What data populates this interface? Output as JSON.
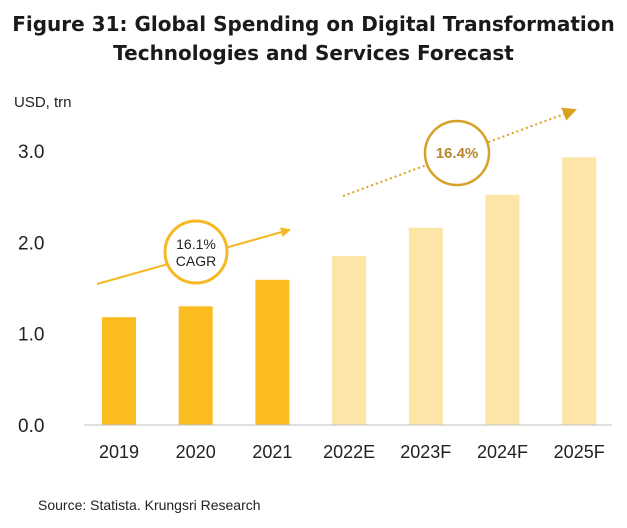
{
  "title": {
    "line1": "Figure 31: Global Spending on Digital Transformation",
    "line2": "Technologies and Services Forecast"
  },
  "unit_label": "USD, trn",
  "source": "Source: Statista. Krungsri Research",
  "colors": {
    "actual": "#fbbc20",
    "forecast": "#fde5a7",
    "trend_actual": "#f6b823",
    "trend_forecast": "#d9a21e",
    "circle_actual": "#f6b823",
    "circle_forecast": "#d6a12a",
    "forecast_label": "#b8862d"
  },
  "annotations": {
    "cagr_actual_line1": "16.1%",
    "cagr_actual_line2": "CAGR",
    "cagr_forecast": "16.4%"
  },
  "chart_data": {
    "type": "bar",
    "title": "Figure 31: Global Spending on Digital Transformation Technologies and Services Forecast",
    "ylabel": "USD, trn",
    "xlabel": "",
    "ylim": [
      0,
      3.0
    ],
    "yticks": [
      "0.0",
      "1.0",
      "2.0",
      "3.0"
    ],
    "ytick_values": [
      0,
      1,
      2,
      3
    ],
    "categories": [
      "2019",
      "2020",
      "2021",
      "2022E",
      "2023F",
      "2024F",
      "2025F"
    ],
    "values": [
      1.18,
      1.3,
      1.59,
      1.85,
      2.16,
      2.52,
      2.93
    ],
    "forecast": [
      false,
      false,
      false,
      true,
      true,
      true,
      true
    ],
    "grid": false,
    "legend": "none"
  }
}
